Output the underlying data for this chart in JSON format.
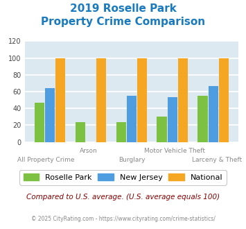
{
  "title_line1": "2019 Roselle Park",
  "title_line2": "Property Crime Comparison",
  "title_color": "#1a7abf",
  "categories": [
    "All Property Crime",
    "Arson",
    "Burglary",
    "Motor Vehicle Theft",
    "Larceny & Theft"
  ],
  "roselle_park": [
    47,
    24,
    24,
    30,
    55
  ],
  "new_jersey": [
    64,
    0,
    55,
    53,
    67
  ],
  "national": [
    100,
    100,
    100,
    100,
    100
  ],
  "bar_color_roselle": "#7dc142",
  "bar_color_nj": "#4d9de0",
  "bar_color_national": "#f5a623",
  "ylim": [
    0,
    120
  ],
  "yticks": [
    0,
    20,
    40,
    60,
    80,
    100,
    120
  ],
  "background_color": "#dce9f0",
  "grid_color": "#ffffff",
  "legend_labels": [
    "Roselle Park",
    "New Jersey",
    "National"
  ],
  "footnote": "Compared to U.S. average. (U.S. average equals 100)",
  "credit": "© 2025 CityRating.com - https://www.cityrating.com/crime-statistics/",
  "footnote_color": "#8b0000",
  "credit_color": "#888888",
  "top_labels": [
    "",
    "Arson",
    "",
    "Motor Vehicle Theft",
    ""
  ],
  "bottom_labels": [
    "All Property Crime",
    "",
    "Burglary",
    "",
    "Larceny & Theft"
  ]
}
